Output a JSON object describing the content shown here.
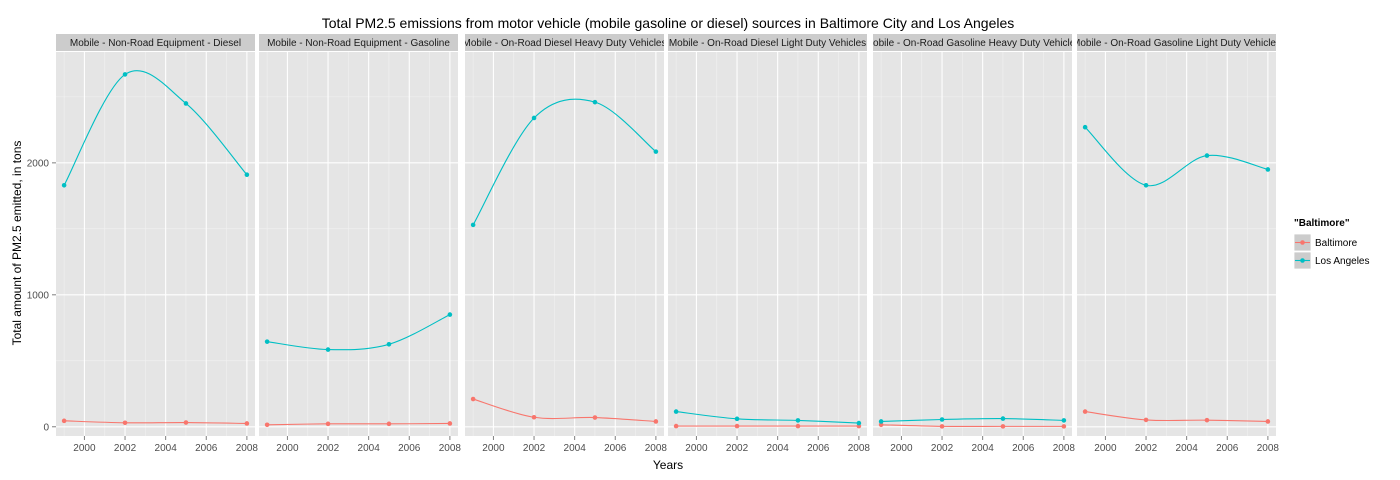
{
  "chart_data": {
    "type": "line",
    "title": "Total PM2.5 emissions from motor vehicle (mobile gasoline or diesel) sources in Baltimore City and Los Angeles",
    "xlabel": "Years",
    "ylabel": "Total amount of PM2.5 emitted, in tons",
    "x": [
      1999,
      2002,
      2005,
      2008
    ],
    "x_ticks": [
      "2000",
      "2002",
      "2004",
      "2006",
      "2008"
    ],
    "xlim": [
      1998.6,
      2008.4
    ],
    "y_ticks": [
      "0",
      "1000",
      "2000"
    ],
    "ylim": [
      -70,
      2840
    ],
    "grid": true,
    "legend": {
      "title": "\"Baltimore\"",
      "position": "right",
      "entries": [
        "Baltimore",
        "Los Angeles"
      ]
    },
    "colors": {
      "Baltimore": "#f8766d",
      "Los Angeles": "#00bfc4"
    },
    "panels": [
      {
        "label": "Mobile - Non-Road Equipment - Diesel",
        "series": [
          {
            "name": "Baltimore",
            "values": [
              45,
              30,
              32,
              25
            ]
          },
          {
            "name": "Los Angeles",
            "values": [
              1830,
              2670,
              2450,
              1910
            ]
          }
        ]
      },
      {
        "label": "Mobile - Non-Road Equipment - Gasoline",
        "series": [
          {
            "name": "Baltimore",
            "values": [
              15,
              22,
              22,
              25
            ]
          },
          {
            "name": "Los Angeles",
            "values": [
              645,
              585,
              625,
              850
            ]
          }
        ]
      },
      {
        "label": "Mobile - On-Road Diesel Heavy Duty Vehicles",
        "series": [
          {
            "name": "Baltimore",
            "values": [
              210,
              72,
              70,
              40
            ]
          },
          {
            "name": "Los Angeles",
            "values": [
              1530,
              2340,
              2460,
              2085
            ]
          }
        ]
      },
      {
        "label": "Mobile - On-Road Diesel Light Duty Vehicles",
        "series": [
          {
            "name": "Baltimore",
            "values": [
              5,
              5,
              5,
              5
            ]
          },
          {
            "name": "Los Angeles",
            "values": [
              115,
              60,
              48,
              28
            ]
          }
        ]
      },
      {
        "label": "Mobile - On-Road Gasoline Heavy Duty Vehicles",
        "series": [
          {
            "name": "Baltimore",
            "values": [
              15,
              3,
              3,
              3
            ]
          },
          {
            "name": "Los Angeles",
            "values": [
              40,
              55,
              62,
              48
            ]
          }
        ]
      },
      {
        "label": "Mobile - On-Road Gasoline Light Duty Vehicles",
        "series": [
          {
            "name": "Baltimore",
            "values": [
              115,
              52,
              50,
              40
            ]
          },
          {
            "name": "Los Angeles",
            "values": [
              2270,
              1830,
              2055,
              1950
            ]
          }
        ]
      }
    ]
  }
}
